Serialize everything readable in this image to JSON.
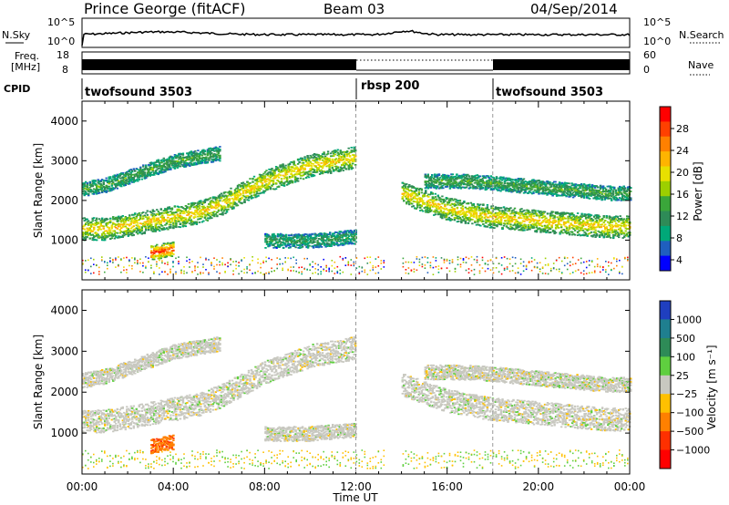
{
  "header": {
    "station": "Prince George (fitACF)",
    "beam": "Beam 03",
    "date": "04/Sep/2014"
  },
  "noise_panel": {
    "left_label": "N.Sky",
    "right_label": "N.Search",
    "left_ticks": [
      "10^5",
      "10^0"
    ],
    "right_ticks": [
      "10^5",
      "10^0"
    ]
  },
  "freq_panel": {
    "left_label_1": "Freq.",
    "left_label_2": "[MHz]",
    "right_label": "Nave",
    "left_ticks": [
      "18",
      "8"
    ],
    "right_ticks": [
      "60",
      "0"
    ]
  },
  "cpid_panel": {
    "label": "CPID",
    "programs": [
      {
        "name": "twofsound 3503",
        "start_hour": 0,
        "end_hour": 12
      },
      {
        "name": "rbsp 200",
        "start_hour": 12,
        "end_hour": 18
      },
      {
        "name": "twofsound 3503",
        "start_hour": 18,
        "end_hour": 24
      }
    ]
  },
  "x_axis": {
    "label": "Time UT",
    "ticks": [
      "00:00",
      "04:00",
      "08:00",
      "12:00",
      "16:00",
      "20:00",
      "00:00"
    ]
  },
  "power_colorbar": {
    "label": "Power [dB]",
    "ticks": [
      "28",
      "24",
      "20",
      "16",
      "12",
      "8",
      "4"
    ],
    "colors": [
      "#ff0000",
      "#ff4000",
      "#ff8000",
      "#ffb400",
      "#e8e000",
      "#9ccf00",
      "#3aa63a",
      "#2e8b57",
      "#00a878",
      "#1f5fbf",
      "#0000ff"
    ]
  },
  "velocity_colorbar": {
    "label": "Velocity [m s⁻¹]",
    "ticks": [
      "1000",
      "500",
      "100",
      "25",
      "−25",
      "−100",
      "−500",
      "−1000"
    ],
    "colors": [
      "#1f3fbf",
      "#1f7f8f",
      "#2e8b57",
      "#5fcf3f",
      "#c8c8c0",
      "#ffc000",
      "#ff8000",
      "#ff3000",
      "#ff0000"
    ]
  },
  "chart_data": {
    "type": "heatmap",
    "title": "Prince George (fitACF) Beam 03 04/Sep/2014",
    "xlabel": "Time UT",
    "ylabel": "Slant Range [km]",
    "xlim": [
      0,
      24
    ],
    "ylim": [
      0,
      4500
    ],
    "yticks": [
      1000,
      2000,
      3000,
      4000
    ],
    "gap_hours": [
      13.3,
      13.95
    ],
    "power_bands": [
      {
        "name": "main ionospheric band",
        "x": [
          0,
          1,
          2,
          3,
          4,
          5,
          6,
          7,
          8,
          9,
          10,
          11,
          12
        ],
        "y": [
          1300,
          1300,
          1400,
          1500,
          1600,
          1700,
          1900,
          2200,
          2500,
          2700,
          2900,
          3000,
          3100
        ],
        "dB": 20
      },
      {
        "name": "upper band",
        "x": [
          0,
          1,
          2,
          3,
          4,
          5,
          6
        ],
        "y": [
          2300,
          2400,
          2600,
          2800,
          3000,
          3100,
          3200
        ],
        "dB": 12
      },
      {
        "name": "1000 km band",
        "x": [
          8,
          9,
          10,
          11,
          12
        ],
        "y": [
          1000,
          1000,
          1000,
          1050,
          1100
        ],
        "dB": 10
      },
      {
        "name": "near-range echo",
        "x": [
          3,
          3.5,
          4
        ],
        "y": [
          700,
          750,
          800
        ],
        "dB": 28
      },
      {
        "name": "afternoon band",
        "x": [
          14,
          15,
          16,
          17,
          18,
          19,
          20,
          21,
          22,
          23,
          24
        ],
        "y": [
          2200,
          2000,
          1800,
          1700,
          1600,
          1550,
          1500,
          1450,
          1400,
          1350,
          1350
        ],
        "dB": 20
      },
      {
        "name": "afternoon upper band",
        "x": [
          15,
          17,
          19,
          21,
          23,
          24
        ],
        "y": [
          2500,
          2500,
          2400,
          2300,
          2200,
          2200
        ],
        "dB": 12
      }
    ],
    "velocity_summary": "mostly ground scatter (±25 m/s), positive-to-negative mixed near 03:00–04:00 at 700 km"
  }
}
